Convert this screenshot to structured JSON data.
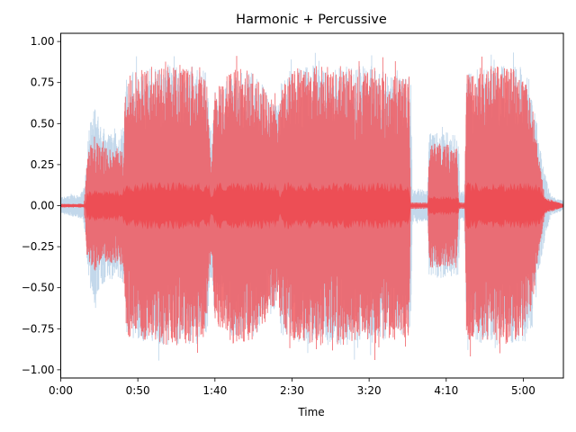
{
  "chart_data": {
    "type": "area",
    "title": "Harmonic + Percussive",
    "xlabel": "Time",
    "ylabel": "",
    "xlim": [
      0,
      326
    ],
    "ylim": [
      -1.05,
      1.05
    ],
    "x_ticks": [
      {
        "value": 0,
        "label": "0:00"
      },
      {
        "value": 50,
        "label": "0:50"
      },
      {
        "value": 100,
        "label": "1:40"
      },
      {
        "value": 150,
        "label": "2:30"
      },
      {
        "value": 200,
        "label": "3:20"
      },
      {
        "value": 250,
        "label": "4:10"
      },
      {
        "value": 300,
        "label": "5:00"
      }
    ],
    "y_ticks": [
      {
        "value": 1.0,
        "label": "1.00"
      },
      {
        "value": 0.75,
        "label": "0.75"
      },
      {
        "value": 0.5,
        "label": "0.50"
      },
      {
        "value": 0.25,
        "label": "0.25"
      },
      {
        "value": 0.0,
        "label": "0.00"
      },
      {
        "value": -0.25,
        "label": "−0.25"
      },
      {
        "value": -0.5,
        "label": "−0.50"
      },
      {
        "value": -0.75,
        "label": "−0.75"
      },
      {
        "value": -1.0,
        "label": "−1.00"
      }
    ],
    "grid": false,
    "series": [
      {
        "color": "#a9c8e2",
        "opacity": 0.7,
        "envelope": [
          [
            0,
            0.05
          ],
          [
            14,
            0.08
          ],
          [
            15,
            0.12
          ],
          [
            16,
            0.18
          ],
          [
            17,
            0.35
          ],
          [
            18,
            0.45
          ],
          [
            20,
            0.55
          ],
          [
            22,
            0.6
          ],
          [
            25,
            0.5
          ],
          [
            30,
            0.45
          ],
          [
            38,
            0.45
          ],
          [
            41,
            0.5
          ],
          [
            42,
            0.8
          ],
          [
            50,
            0.82
          ],
          [
            60,
            0.85
          ],
          [
            75,
            0.85
          ],
          [
            90,
            0.85
          ],
          [
            95,
            0.8
          ],
          [
            97,
            0.45
          ],
          [
            98,
            0.45
          ],
          [
            100,
            0.7
          ],
          [
            110,
            0.8
          ],
          [
            125,
            0.82
          ],
          [
            140,
            0.62
          ],
          [
            141,
            0.6
          ],
          [
            143,
            0.8
          ],
          [
            155,
            0.85
          ],
          [
            170,
            0.85
          ],
          [
            185,
            0.85
          ],
          [
            195,
            0.85
          ],
          [
            205,
            0.85
          ],
          [
            215,
            0.8
          ],
          [
            227,
            0.78
          ],
          [
            228,
            0.1
          ],
          [
            238,
            0.1
          ],
          [
            239,
            0.45
          ],
          [
            250,
            0.45
          ],
          [
            258,
            0.42
          ],
          [
            259,
            0.08
          ],
          [
            262,
            0.1
          ],
          [
            263,
            0.8
          ],
          [
            275,
            0.85
          ],
          [
            290,
            0.85
          ],
          [
            300,
            0.85
          ],
          [
            306,
            0.75
          ],
          [
            310,
            0.4
          ],
          [
            314,
            0.2
          ],
          [
            318,
            0.06
          ],
          [
            326,
            0.03
          ]
        ],
        "core": []
      },
      {
        "color": "#f05a60",
        "opacity": 0.85,
        "envelope": [
          [
            0,
            0.01
          ],
          [
            15,
            0.01
          ],
          [
            16,
            0.15
          ],
          [
            17,
            0.3
          ],
          [
            18,
            0.35
          ],
          [
            22,
            0.4
          ],
          [
            30,
            0.35
          ],
          [
            38,
            0.35
          ],
          [
            41,
            0.4
          ],
          [
            42,
            0.8
          ],
          [
            50,
            0.82
          ],
          [
            60,
            0.85
          ],
          [
            75,
            0.85
          ],
          [
            90,
            0.85
          ],
          [
            95,
            0.75
          ],
          [
            97,
            0.3
          ],
          [
            98,
            0.3
          ],
          [
            100,
            0.7
          ],
          [
            110,
            0.85
          ],
          [
            125,
            0.82
          ],
          [
            140,
            0.6
          ],
          [
            141,
            0.55
          ],
          [
            143,
            0.75
          ],
          [
            155,
            0.85
          ],
          [
            170,
            0.85
          ],
          [
            185,
            0.85
          ],
          [
            195,
            0.8
          ],
          [
            205,
            0.85
          ],
          [
            215,
            0.82
          ],
          [
            226,
            0.8
          ],
          [
            227,
            0.02
          ],
          [
            238,
            0.02
          ],
          [
            239,
            0.38
          ],
          [
            250,
            0.38
          ],
          [
            257,
            0.35
          ],
          [
            258,
            0.02
          ],
          [
            262,
            0.02
          ],
          [
            263,
            0.82
          ],
          [
            275,
            0.85
          ],
          [
            290,
            0.85
          ],
          [
            300,
            0.8
          ],
          [
            306,
            0.6
          ],
          [
            310,
            0.3
          ],
          [
            314,
            0.05
          ],
          [
            326,
            0.01
          ]
        ],
        "core": [
          [
            0,
            0.01
          ],
          [
            16,
            0.01
          ],
          [
            17,
            0.08
          ],
          [
            40,
            0.08
          ],
          [
            42,
            0.12
          ],
          [
            96,
            0.12
          ],
          [
            98,
            0.04
          ],
          [
            100,
            0.12
          ],
          [
            140,
            0.12
          ],
          [
            142,
            0.06
          ],
          [
            144,
            0.12
          ],
          [
            226,
            0.12
          ],
          [
            227,
            0.01
          ],
          [
            238,
            0.01
          ],
          [
            239,
            0.05
          ],
          [
            258,
            0.05
          ],
          [
            259,
            0.01
          ],
          [
            262,
            0.01
          ],
          [
            263,
            0.12
          ],
          [
            310,
            0.12
          ],
          [
            314,
            0.04
          ],
          [
            326,
            0.01
          ]
        ]
      }
    ]
  }
}
